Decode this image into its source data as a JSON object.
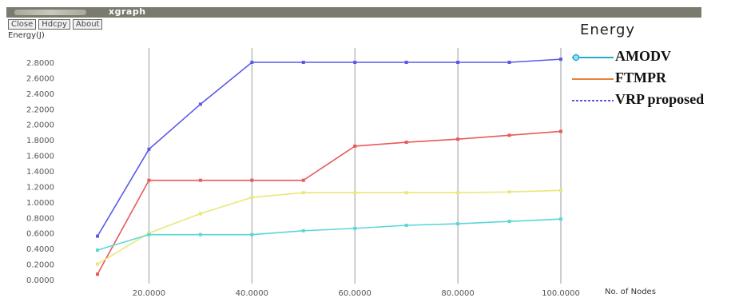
{
  "window": {
    "title": "xgraph"
  },
  "toolbar": {
    "close_label": "Close",
    "hdcopy_label": "Hdcpy",
    "about_label": "About"
  },
  "legend": {
    "title": "Energy",
    "items": [
      {
        "label": "AMODV",
        "color": "#2aa7cf",
        "marker": "circle"
      },
      {
        "label": "FTMPR",
        "color": "#e8823a",
        "marker": "none"
      },
      {
        "label": "VRP proposed",
        "color": "#5a5ae0",
        "marker": "dashed"
      }
    ]
  },
  "chart_data": {
    "type": "line",
    "ylabel": "Energy(J)",
    "xlabel": "No. of Nodes",
    "xlim": [
      10,
      100
    ],
    "ylim": [
      0,
      2.8
    ],
    "grid": "vertical",
    "x_ticks": [
      20,
      40,
      60,
      80,
      100
    ],
    "x_tick_labels": [
      "20.0000",
      "40.0000",
      "60.0000",
      "80.0000",
      "100.0000"
    ],
    "y_ticks": [
      0,
      0.2,
      0.4,
      0.6,
      0.8,
      1.0,
      1.2,
      1.4,
      1.6,
      1.8,
      2.0,
      2.2,
      2.4,
      2.6,
      2.8
    ],
    "y_tick_labels": [
      "0.0000",
      "0.2000",
      "0.4000",
      "0.6000",
      "0.8000",
      "1.0000",
      "1.2000",
      "1.4000",
      "1.6000",
      "1.8000",
      "2.0000",
      "2.2000",
      "2.4000",
      "2.6000",
      "2.8000"
    ],
    "x": [
      10,
      20,
      30,
      40,
      50,
      60,
      70,
      80,
      90,
      100
    ],
    "series": [
      {
        "color": "#5a5ae8",
        "values": [
          0.56,
          1.68,
          2.26,
          2.8,
          2.8,
          2.8,
          2.8,
          2.8,
          2.8,
          2.84
        ]
      },
      {
        "color": "#e85a5a",
        "values": [
          0.07,
          1.28,
          1.28,
          1.28,
          1.28,
          1.72,
          1.77,
          1.81,
          1.86,
          1.91
        ]
      },
      {
        "color": "#e8e87a",
        "values": [
          0.2,
          0.6,
          0.85,
          1.06,
          1.12,
          1.12,
          1.12,
          1.12,
          1.13,
          1.15
        ]
      },
      {
        "color": "#5ad7d7",
        "values": [
          0.38,
          0.58,
          0.58,
          0.58,
          0.63,
          0.66,
          0.7,
          0.72,
          0.75,
          0.78
        ]
      }
    ]
  }
}
